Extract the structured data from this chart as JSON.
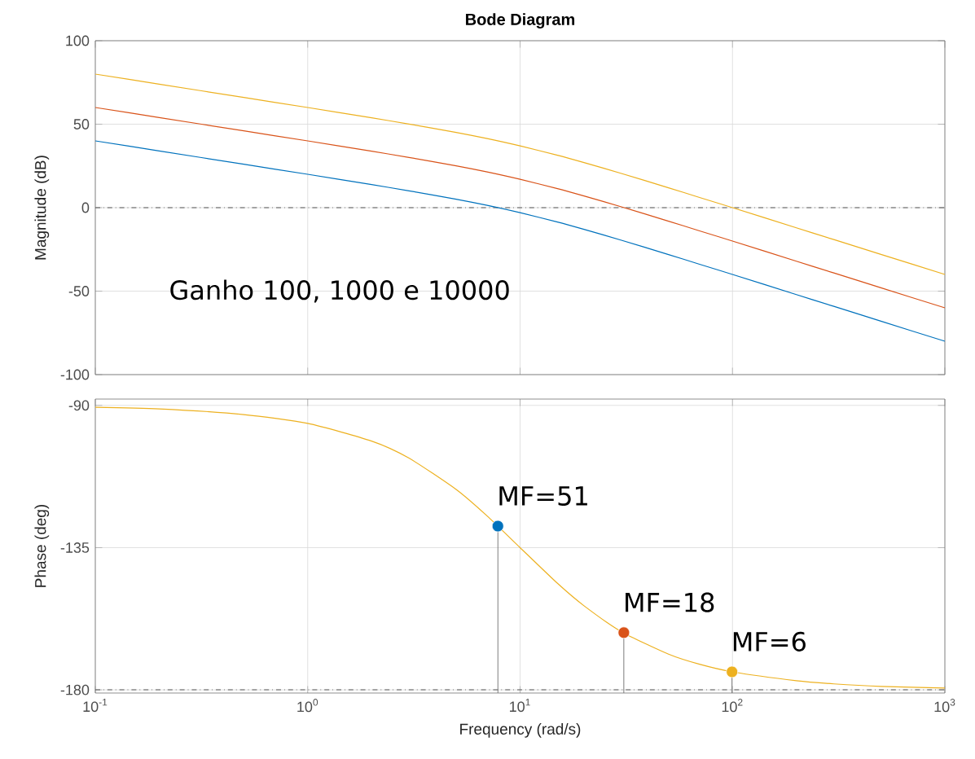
{
  "chart_data": [
    {
      "type": "line",
      "title": "Bode Diagram",
      "ylabel": "Magnitude (dB)",
      "log": "x",
      "grid": true,
      "tick_labels": "y",
      "x": [
        0.1,
        0.2,
        0.5,
        1,
        2,
        3,
        5,
        7,
        10,
        15,
        20,
        30,
        50,
        70,
        100,
        200,
        300,
        500,
        1000
      ],
      "series": [
        {
          "color": "#0072bd",
          "values": [
            40.0,
            34.0,
            26.0,
            20.0,
            13.8,
            10.1,
            5.1,
            1.4,
            -3.0,
            -8.6,
            -13.0,
            -19.5,
            -28.1,
            -33.9,
            -40.0,
            -52.1,
            -59.1,
            -68.0,
            -80.0
          ]
        },
        {
          "color": "#d95319",
          "values": [
            60.0,
            54.0,
            46.0,
            40.0,
            33.8,
            30.1,
            25.1,
            21.4,
            17.0,
            11.4,
            7.0,
            0.5,
            -8.1,
            -13.9,
            -20.0,
            -32.1,
            -39.1,
            -48.0,
            -60.0
          ]
        },
        {
          "color": "#edb120",
          "values": [
            80.0,
            74.0,
            66.0,
            60.0,
            53.8,
            50.1,
            45.1,
            41.4,
            37.0,
            31.4,
            27.0,
            20.5,
            11.9,
            6.1,
            0.0,
            -12.1,
            -19.1,
            -28.0,
            -40.0
          ]
        }
      ],
      "xlim": [
        0.1,
        1000
      ],
      "ylim": [
        -100,
        100
      ],
      "xticks": [
        {
          "value": 0.1,
          "label": null
        },
        {
          "value": 1,
          "label": null
        },
        {
          "value": 10,
          "label": null
        },
        {
          "value": 100,
          "label": null
        },
        {
          "value": 1000,
          "label": null
        }
      ],
      "yticks": [
        -100,
        -50,
        0,
        50,
        100
      ],
      "ref_lines": [
        {
          "axis": "y",
          "value": 0,
          "color": "#595959",
          "line_style": "dashdot"
        }
      ],
      "annotations": [
        "Ganho 100, 1000 e 10000"
      ]
    },
    {
      "type": "line",
      "xlabel": "Frequency  (rad/s)",
      "ylabel": "Phase (deg)",
      "log": "x",
      "grid": true,
      "x": [
        0.1,
        0.2,
        0.5,
        1,
        2,
        3,
        5,
        7,
        10,
        15,
        20,
        30,
        50,
        70,
        100,
        200,
        300,
        500,
        1000
      ],
      "series": [
        {
          "color": "#edb120",
          "values": [
            -90.6,
            -91.1,
            -92.9,
            -95.7,
            -101.3,
            -106.7,
            -116.6,
            -125.0,
            -135.0,
            -146.3,
            -153.4,
            -161.6,
            -168.7,
            -171.9,
            -174.3,
            -177.1,
            -178.1,
            -178.9,
            -179.4
          ]
        },
        {
          "type": "lollipop",
          "x": [
            7.86,
            30.8,
            99.5
          ],
          "values": [
            -128.2,
            -161.9,
            -174.3
          ],
          "colors": [
            "#0072bd",
            "#d95319",
            "#edb120"
          ]
        }
      ],
      "xlim": [
        0.1,
        1000
      ],
      "ylim": [
        -181,
        -88
      ],
      "xticks": [
        {
          "value": 0.1,
          "label": "10$^{-1}$"
        },
        {
          "value": 1,
          "label": "10$^{0}$"
        },
        {
          "value": 10,
          "label": "10$^{1}$"
        },
        {
          "value": 100,
          "label": "10$^{2}$"
        },
        {
          "value": 1000,
          "label": "10$^{3}$"
        }
      ],
      "yticks": [
        -180,
        -135,
        -90
      ],
      "ref_lines": [
        {
          "axis": "y",
          "value": -180,
          "color": "#595959",
          "line_style": "dashdot"
        }
      ],
      "annotations": [
        {
          "text": "MF=51",
          "x": 7.86,
          "y": -128.2
        },
        {
          "text": "MF=18",
          "x": 30.8,
          "y": -161.9
        },
        {
          "text": "MF=6",
          "x": 99.5,
          "y": -174.3
        }
      ]
    }
  ]
}
